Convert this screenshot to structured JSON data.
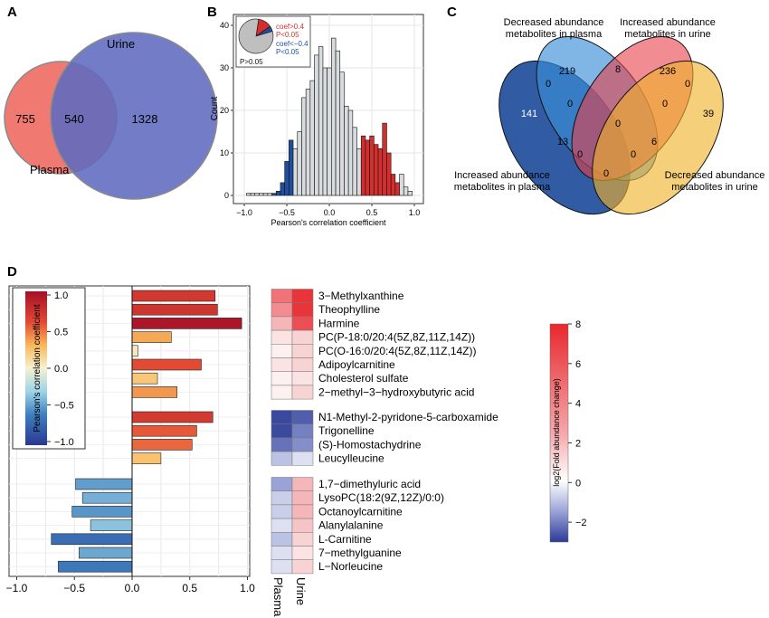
{
  "panel_labels": {
    "a": "A",
    "b": "B",
    "c": "C",
    "d": "D"
  },
  "colors": {
    "plasma_circle": "#f07a72",
    "urine_circle": "#5e6abf",
    "overlap": "#5a4aa0",
    "hist_neutral": "#d9dcdf",
    "hist_pos": "#d32f2f",
    "hist_neg": "#1f4e9c",
    "venn_blue": "#1f4e9c",
    "venn_lightblue": "#3b8fd9",
    "venn_red": "#e63f4a",
    "venn_yellow": "#f0b22a"
  },
  "venn2": {
    "urine_label": "Urine",
    "plasma_label": "Plasma",
    "plasma_only": "755",
    "both": "540",
    "urine_only": "1328"
  },
  "chart_data": [
    {
      "type": "bar",
      "panel": "B",
      "xlabel": "Pearson's correlation coefficient",
      "ylabel": "Count",
      "xlim": [
        -1.0,
        1.0
      ],
      "ylim": [
        0,
        42
      ],
      "xticks": [
        "−1.0",
        "−0.5",
        "0.0",
        "0.5",
        "1.0"
      ],
      "yticks": [
        "0",
        "10",
        "20",
        "30",
        "40"
      ],
      "bin_width": 0.05,
      "bins": [
        {
          "x": -0.95,
          "y": 0.5,
          "group": "ns"
        },
        {
          "x": -0.9,
          "y": 0.5,
          "group": "ns"
        },
        {
          "x": -0.85,
          "y": 0.5,
          "group": "ns"
        },
        {
          "x": -0.8,
          "y": 0.5,
          "group": "ns"
        },
        {
          "x": -0.75,
          "y": 0.5,
          "group": "ns"
        },
        {
          "x": -0.7,
          "y": 0.5,
          "group": "ns"
        },
        {
          "x": -0.65,
          "y": 0.5,
          "group": "neg"
        },
        {
          "x": -0.6,
          "y": 1,
          "group": "neg"
        },
        {
          "x": -0.55,
          "y": 3,
          "group": "neg"
        },
        {
          "x": -0.5,
          "y": 8,
          "group": "neg"
        },
        {
          "x": -0.45,
          "y": 13,
          "group": "neg"
        },
        {
          "x": -0.4,
          "y": 11,
          "group": "ns"
        },
        {
          "x": -0.35,
          "y": 15,
          "group": "ns"
        },
        {
          "x": -0.3,
          "y": 23,
          "group": "ns"
        },
        {
          "x": -0.25,
          "y": 25,
          "group": "ns"
        },
        {
          "x": -0.2,
          "y": 27,
          "group": "ns"
        },
        {
          "x": -0.15,
          "y": 33,
          "group": "ns"
        },
        {
          "x": -0.1,
          "y": 35,
          "group": "ns"
        },
        {
          "x": -0.05,
          "y": 30,
          "group": "ns"
        },
        {
          "x": 0.0,
          "y": 30,
          "group": "ns"
        },
        {
          "x": 0.05,
          "y": 37,
          "group": "ns"
        },
        {
          "x": 0.1,
          "y": 34,
          "group": "ns"
        },
        {
          "x": 0.15,
          "y": 29,
          "group": "ns"
        },
        {
          "x": 0.2,
          "y": 21,
          "group": "ns"
        },
        {
          "x": 0.25,
          "y": 20,
          "group": "ns"
        },
        {
          "x": 0.3,
          "y": 16,
          "group": "ns"
        },
        {
          "x": 0.35,
          "y": 11,
          "group": "ns"
        },
        {
          "x": 0.4,
          "y": 14,
          "group": "pos"
        },
        {
          "x": 0.45,
          "y": 13,
          "group": "pos"
        },
        {
          "x": 0.5,
          "y": 14,
          "group": "pos"
        },
        {
          "x": 0.55,
          "y": 12,
          "group": "pos"
        },
        {
          "x": 0.6,
          "y": 11,
          "group": "pos"
        },
        {
          "x": 0.65,
          "y": 17,
          "group": "pos"
        },
        {
          "x": 0.7,
          "y": 10,
          "group": "pos"
        },
        {
          "x": 0.75,
          "y": 5,
          "group": "pos"
        },
        {
          "x": 0.8,
          "y": 3,
          "group": "pos"
        },
        {
          "x": 0.85,
          "y": 5,
          "group": "ns"
        },
        {
          "x": 0.9,
          "y": 2,
          "group": "ns"
        },
        {
          "x": 0.95,
          "y": 1,
          "group": "ns"
        }
      ],
      "inset": {
        "pos_lines": [
          "coef>0.4",
          "P<0.05"
        ],
        "neg_lines": [
          "coef<−0.4",
          "P<0.05"
        ],
        "ns_label": "P>0.05",
        "fractions": {
          "pos": 0.13,
          "neg": 0.05,
          "ns": 0.82
        }
      }
    },
    {
      "type": "bar",
      "panel": "D",
      "orientation": "horizontal",
      "xlim": [
        -1.0,
        1.0
      ],
      "xticks": [
        "−1.0",
        "−0.5",
        "0.0",
        "0.5",
        "1.0"
      ],
      "categories": [
        "3−Methylxanthine",
        "Theophylline",
        "Harmine",
        "PC(P-18:0/20:4(5Z,8Z,11Z,14Z))",
        "PC(O-16:0/20:4(5Z,8Z,11Z,14Z))",
        "Adipoylcarnitine",
        "Cholesterol sulfate",
        "2−methyl−3−hydroxybutyric acid",
        "N1-Methyl-2-pyridone-5-carboxamide",
        "Trigonelline",
        "(S)-Homostachydrine",
        "Leucylleucine",
        "1,7−dimethyluric acid",
        "LysoPC(18:2(9Z,12Z)/0:0)",
        "Octanoylcarnitine",
        "Alanylalanine",
        "L-Carnitine",
        "7−methylguanine",
        "L−Norleucine"
      ],
      "groups": [
        8,
        4,
        7
      ],
      "values": [
        0.72,
        0.74,
        0.95,
        0.34,
        0.05,
        0.6,
        0.22,
        0.39,
        0.7,
        0.56,
        0.52,
        0.25,
        -0.49,
        -0.43,
        -0.52,
        -0.36,
        -0.7,
        -0.46,
        -0.64
      ],
      "colorbar": {
        "title": "Pearson's correlation coefficient",
        "ticks": [
          "1.0",
          "0.5",
          "0.0",
          "−0.5",
          "−1.0"
        ]
      }
    },
    {
      "type": "heatmap",
      "panel": "D",
      "columns": [
        "Plasma",
        "Urine"
      ],
      "values": [
        [
          5.0,
          7.5
        ],
        [
          4.0,
          7.5
        ],
        [
          2.5,
          6.5
        ],
        [
          1.0,
          1.5
        ],
        [
          0.5,
          1.5
        ],
        [
          1.0,
          1.5
        ],
        [
          0.5,
          1.0
        ],
        [
          0.5,
          1.5
        ],
        [
          -2.8,
          -2.5
        ],
        [
          -2.8,
          -2.0
        ],
        [
          -2.2,
          -1.8
        ],
        [
          -1.0,
          -0.5
        ],
        [
          -1.5,
          2.5
        ],
        [
          -0.8,
          2.5
        ],
        [
          -0.8,
          2.5
        ],
        [
          -0.5,
          2.0
        ],
        [
          -1.0,
          1.5
        ],
        [
          -0.5,
          1.0
        ],
        [
          -0.5,
          1.5
        ]
      ],
      "colorbar": {
        "title": "log2(Fold abundance change)",
        "ticks": [
          "8",
          "6",
          "4",
          "2",
          "0",
          "−2"
        ],
        "range": [
          -3,
          8
        ]
      }
    }
  ],
  "venn4": {
    "labels": {
      "dec_plasma": [
        "Decreased abundance",
        "metabolites in plasma"
      ],
      "inc_urine": [
        "Increased abundance",
        "metabolites in urine"
      ],
      "inc_plasma": [
        "Increased abundance",
        "metabolites in plasma"
      ],
      "dec_urine": [
        "Decreased abundance",
        "metabolites in urine"
      ]
    },
    "counts": {
      "lightblue_only": "219",
      "red_only": "236",
      "blue_only": "141",
      "yellow_only": "39",
      "lightblue_red": "8",
      "blue_lightblue": "0",
      "red_yellow": "0",
      "blue_lightblue_red": "0",
      "lightblue_red_yellow": "0",
      "center": "0",
      "blue_red": "13",
      "lightblue_yellow": "6",
      "blue_yellow_low": "0",
      "blue_red_yellow": "0",
      "bottom": "0"
    }
  }
}
